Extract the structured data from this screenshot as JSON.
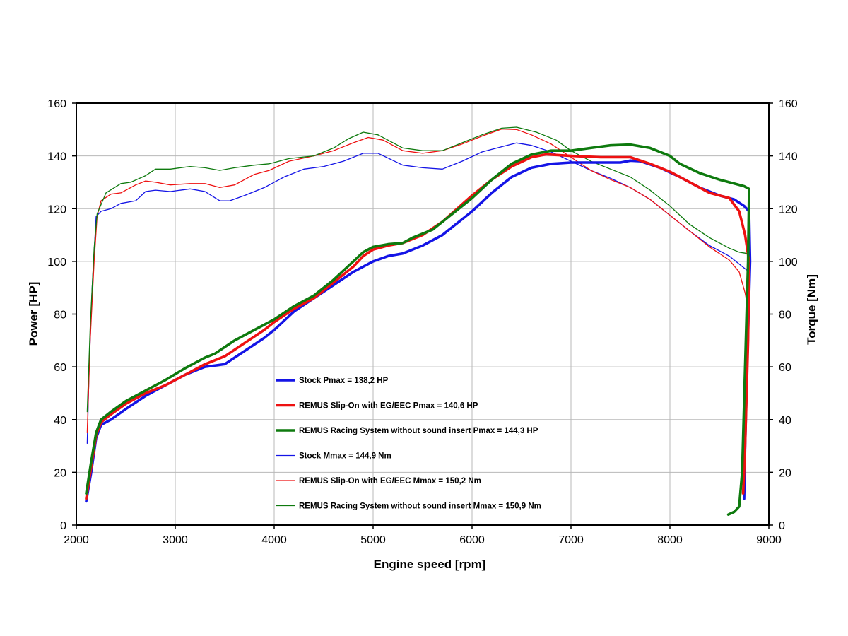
{
  "chart_data": {
    "type": "line",
    "xlabel": "Engine speed [rpm]",
    "ylabel_left": "Power [HP]",
    "ylabel_right": "Torque [Nm]",
    "xlim": [
      2000,
      9000
    ],
    "ylim_left": [
      0,
      160
    ],
    "ylim_right": [
      0,
      160
    ],
    "x_ticks": [
      "2000",
      "3000",
      "4000",
      "5000",
      "6000",
      "7000",
      "8000",
      "9000"
    ],
    "y_ticks_left": [
      "0",
      "20",
      "40",
      "60",
      "80",
      "100",
      "120",
      "140",
      "160"
    ],
    "y_ticks_right": [
      "0",
      "20",
      "40",
      "60",
      "80",
      "100",
      "120",
      "140",
      "160"
    ],
    "grid": true,
    "legend_position": "inside-center-bottom",
    "series": [
      {
        "name": "Stock Pmax = 138,2 HP",
        "color": "#1414e6",
        "weight": "thick",
        "points": [
          [
            2100,
            9
          ],
          [
            2150,
            20
          ],
          [
            2200,
            33
          ],
          [
            2250,
            38
          ],
          [
            2350,
            40
          ],
          [
            2500,
            44
          ],
          [
            2700,
            49
          ],
          [
            2900,
            53
          ],
          [
            3100,
            57
          ],
          [
            3300,
            60
          ],
          [
            3500,
            61
          ],
          [
            3700,
            66
          ],
          [
            3900,
            71
          ],
          [
            4000,
            74
          ],
          [
            4200,
            81
          ],
          [
            4400,
            86
          ],
          [
            4600,
            91
          ],
          [
            4800,
            96
          ],
          [
            5000,
            100
          ],
          [
            5150,
            102
          ],
          [
            5300,
            103
          ],
          [
            5500,
            106
          ],
          [
            5700,
            110
          ],
          [
            6000,
            119
          ],
          [
            6200,
            126
          ],
          [
            6400,
            132
          ],
          [
            6600,
            135.5
          ],
          [
            6800,
            137
          ],
          [
            7000,
            137.5
          ],
          [
            7300,
            137.5
          ],
          [
            7500,
            137.5
          ],
          [
            7600,
            138.2
          ],
          [
            7700,
            138
          ],
          [
            7900,
            135.5
          ],
          [
            8100,
            132
          ],
          [
            8300,
            128
          ],
          [
            8500,
            125
          ],
          [
            8650,
            123.5
          ],
          [
            8750,
            121
          ],
          [
            8800,
            119
          ],
          [
            8810,
            100
          ],
          [
            8780,
            60
          ],
          [
            8760,
            30
          ],
          [
            8750,
            10
          ]
        ]
      },
      {
        "name": "REMUS Slip-On with EG/EEC Pmax =  140,6 HP",
        "color": "#ee1111",
        "weight": "thick",
        "points": [
          [
            2100,
            10
          ],
          [
            2150,
            22
          ],
          [
            2200,
            34
          ],
          [
            2250,
            39
          ],
          [
            2350,
            42
          ],
          [
            2500,
            46
          ],
          [
            2700,
            50
          ],
          [
            2900,
            53
          ],
          [
            3100,
            57
          ],
          [
            3300,
            61
          ],
          [
            3500,
            64
          ],
          [
            3700,
            69
          ],
          [
            3900,
            74
          ],
          [
            4000,
            77
          ],
          [
            4200,
            82
          ],
          [
            4400,
            86
          ],
          [
            4600,
            92
          ],
          [
            4800,
            98
          ],
          [
            4900,
            102
          ],
          [
            5000,
            104.5
          ],
          [
            5150,
            106
          ],
          [
            5300,
            107
          ],
          [
            5500,
            110
          ],
          [
            5700,
            115
          ],
          [
            6000,
            125
          ],
          [
            6200,
            131
          ],
          [
            6400,
            136
          ],
          [
            6600,
            139.5
          ],
          [
            6750,
            140.6
          ],
          [
            7000,
            140
          ],
          [
            7300,
            139.5
          ],
          [
            7500,
            139.5
          ],
          [
            7600,
            139.5
          ],
          [
            7800,
            137
          ],
          [
            8000,
            134
          ],
          [
            8200,
            130
          ],
          [
            8400,
            126
          ],
          [
            8600,
            124
          ],
          [
            8700,
            119
          ],
          [
            8760,
            110
          ],
          [
            8800,
            100
          ],
          [
            8790,
            70
          ],
          [
            8760,
            30
          ],
          [
            8740,
            12
          ]
        ]
      },
      {
        "name": "REMUS Racing System without sound insert Pmax = 144,3 HP",
        "color": "#0e7a0e",
        "weight": "thick",
        "points": [
          [
            2100,
            12
          ],
          [
            2150,
            24
          ],
          [
            2200,
            35
          ],
          [
            2250,
            40
          ],
          [
            2350,
            43
          ],
          [
            2500,
            47
          ],
          [
            2700,
            51
          ],
          [
            2900,
            55
          ],
          [
            3100,
            59.5
          ],
          [
            3300,
            63.5
          ],
          [
            3400,
            65
          ],
          [
            3600,
            70
          ],
          [
            3800,
            74
          ],
          [
            4000,
            78
          ],
          [
            4200,
            83
          ],
          [
            4400,
            87
          ],
          [
            4600,
            93
          ],
          [
            4800,
            100
          ],
          [
            4900,
            103.5
          ],
          [
            5000,
            105.5
          ],
          [
            5150,
            106.5
          ],
          [
            5300,
            107
          ],
          [
            5400,
            109
          ],
          [
            5600,
            112
          ],
          [
            5800,
            118
          ],
          [
            6000,
            124
          ],
          [
            6200,
            131
          ],
          [
            6400,
            137
          ],
          [
            6600,
            140.5
          ],
          [
            6800,
            142
          ],
          [
            7000,
            142
          ],
          [
            7200,
            143
          ],
          [
            7400,
            144
          ],
          [
            7600,
            144.3
          ],
          [
            7800,
            143
          ],
          [
            8000,
            140
          ],
          [
            8100,
            137
          ],
          [
            8300,
            133.5
          ],
          [
            8500,
            131
          ],
          [
            8650,
            129.5
          ],
          [
            8750,
            128.5
          ],
          [
            8800,
            127.5
          ],
          [
            8790,
            100
          ],
          [
            8760,
            60
          ],
          [
            8730,
            20
          ],
          [
            8700,
            7
          ],
          [
            8650,
            5
          ],
          [
            8590,
            4
          ]
        ]
      },
      {
        "name": "Stock Mmax = 144,9 Nm",
        "color": "#1414e6",
        "weight": "thin",
        "points": [
          [
            2110,
            31
          ],
          [
            2130,
            60
          ],
          [
            2160,
            90
          ],
          [
            2200,
            117
          ],
          [
            2250,
            119
          ],
          [
            2350,
            120
          ],
          [
            2450,
            122
          ],
          [
            2600,
            123
          ],
          [
            2700,
            126.5
          ],
          [
            2800,
            127
          ],
          [
            2950,
            126.5
          ],
          [
            3150,
            127.5
          ],
          [
            3300,
            126.5
          ],
          [
            3450,
            123
          ],
          [
            3550,
            123
          ],
          [
            3700,
            125
          ],
          [
            3900,
            128
          ],
          [
            4100,
            132
          ],
          [
            4300,
            135
          ],
          [
            4500,
            136
          ],
          [
            4700,
            138
          ],
          [
            4900,
            141
          ],
          [
            5050,
            141
          ],
          [
            5300,
            136.5
          ],
          [
            5500,
            135.5
          ],
          [
            5700,
            135
          ],
          [
            5900,
            138
          ],
          [
            6100,
            141.5
          ],
          [
            6300,
            143.5
          ],
          [
            6450,
            144.9
          ],
          [
            6600,
            144
          ],
          [
            6800,
            141.5
          ],
          [
            7000,
            138
          ],
          [
            7200,
            134.5
          ],
          [
            7400,
            131.5
          ],
          [
            7600,
            128
          ],
          [
            7800,
            123.5
          ],
          [
            8000,
            117.5
          ],
          [
            8200,
            111.5
          ],
          [
            8400,
            106
          ],
          [
            8600,
            102
          ],
          [
            8700,
            99
          ],
          [
            8800,
            96
          ]
        ]
      },
      {
        "name": "REMUS Slip-On with EG/EEC Mmax = 150,2 Nm",
        "color": "#ee1111",
        "weight": "thin",
        "points": [
          [
            2110,
            35
          ],
          [
            2140,
            70
          ],
          [
            2180,
            100
          ],
          [
            2210,
            117
          ],
          [
            2250,
            123
          ],
          [
            2350,
            125.5
          ],
          [
            2450,
            126
          ],
          [
            2600,
            129
          ],
          [
            2700,
            130.5
          ],
          [
            2800,
            130
          ],
          [
            2950,
            129
          ],
          [
            3150,
            129.5
          ],
          [
            3300,
            129.5
          ],
          [
            3450,
            128
          ],
          [
            3600,
            129
          ],
          [
            3800,
            133
          ],
          [
            3950,
            134.5
          ],
          [
            4150,
            138
          ],
          [
            4400,
            140
          ],
          [
            4600,
            142
          ],
          [
            4800,
            145
          ],
          [
            4950,
            147
          ],
          [
            5100,
            146
          ],
          [
            5300,
            142
          ],
          [
            5500,
            141
          ],
          [
            5700,
            142
          ],
          [
            5900,
            144.5
          ],
          [
            6100,
            147.5
          ],
          [
            6300,
            150.2
          ],
          [
            6450,
            150
          ],
          [
            6600,
            148
          ],
          [
            6800,
            144.5
          ],
          [
            7000,
            139.5
          ],
          [
            7200,
            134.5
          ],
          [
            7400,
            131
          ],
          [
            7600,
            128
          ],
          [
            7800,
            123.5
          ],
          [
            8000,
            117.5
          ],
          [
            8200,
            111.5
          ],
          [
            8400,
            105.5
          ],
          [
            8600,
            100.5
          ],
          [
            8700,
            96
          ],
          [
            8760,
            88
          ],
          [
            8790,
            82
          ]
        ]
      },
      {
        "name": "REMUS Racing System without sound insert Mmax = 150,9 Nm",
        "color": "#0e7a0e",
        "weight": "thin",
        "points": [
          [
            2110,
            43
          ],
          [
            2140,
            75
          ],
          [
            2180,
            105
          ],
          [
            2210,
            118
          ],
          [
            2300,
            126
          ],
          [
            2450,
            129.5
          ],
          [
            2550,
            130
          ],
          [
            2700,
            132.5
          ],
          [
            2800,
            135
          ],
          [
            2950,
            135
          ],
          [
            3150,
            136
          ],
          [
            3300,
            135.5
          ],
          [
            3450,
            134.5
          ],
          [
            3600,
            135.5
          ],
          [
            3800,
            136.5
          ],
          [
            3950,
            137
          ],
          [
            4150,
            139
          ],
          [
            4400,
            140
          ],
          [
            4600,
            143
          ],
          [
            4750,
            146.5
          ],
          [
            4900,
            149
          ],
          [
            5050,
            148
          ],
          [
            5300,
            143
          ],
          [
            5500,
            142
          ],
          [
            5700,
            142
          ],
          [
            5900,
            145
          ],
          [
            6100,
            148
          ],
          [
            6300,
            150.5
          ],
          [
            6450,
            150.9
          ],
          [
            6650,
            149
          ],
          [
            6850,
            146
          ],
          [
            7000,
            142
          ],
          [
            7200,
            138
          ],
          [
            7400,
            135
          ],
          [
            7600,
            132
          ],
          [
            7800,
            127
          ],
          [
            8000,
            121
          ],
          [
            8200,
            114
          ],
          [
            8400,
            109
          ],
          [
            8600,
            105
          ],
          [
            8700,
            103.5
          ],
          [
            8780,
            103
          ]
        ]
      }
    ]
  }
}
